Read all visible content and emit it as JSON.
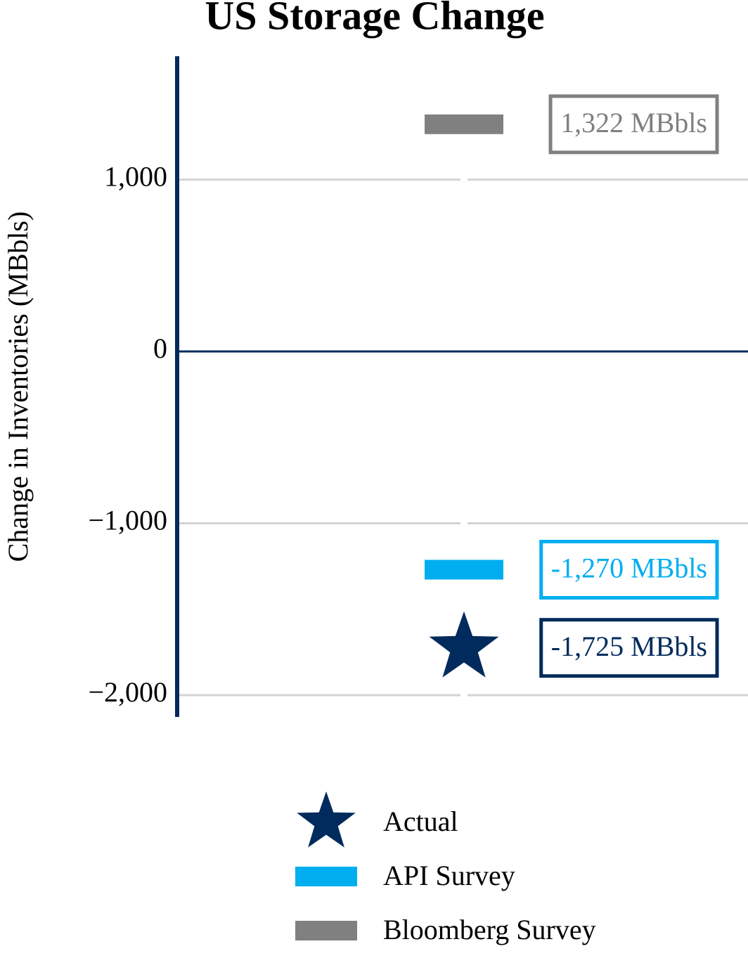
{
  "chart_data": {
    "type": "marker",
    "title": "US Storage Change",
    "y_label": "Change in Inventories (MBbls)",
    "categories": [
      null
    ],
    "ylim": [
      -2127,
      1718
    ],
    "yticks": [
      {
        "value": -2000,
        "label": "−2,000"
      },
      {
        "value": -1000,
        "label": "−1,000"
      },
      0,
      {
        "value": 1000,
        "label": "1,000"
      }
    ],
    "grid": true,
    "legend": "bottom",
    "series": [
      {
        "name": "Actual",
        "color": "#002b5c",
        "marker": "star",
        "values": [
          -1725
        ],
        "value_labels": [
          "-1,725 MBbls"
        ]
      },
      {
        "name": "API Survey",
        "color": "#00aeef",
        "marker": "dash",
        "values": [
          -1270
        ],
        "value_labels": [
          "-1,270 MBbls"
        ]
      },
      {
        "name": "Bloomberg Survey",
        "color": "#808080",
        "marker": "dash",
        "values": [
          1322
        ],
        "value_labels": [
          "1,322 MBbls"
        ]
      }
    ]
  }
}
